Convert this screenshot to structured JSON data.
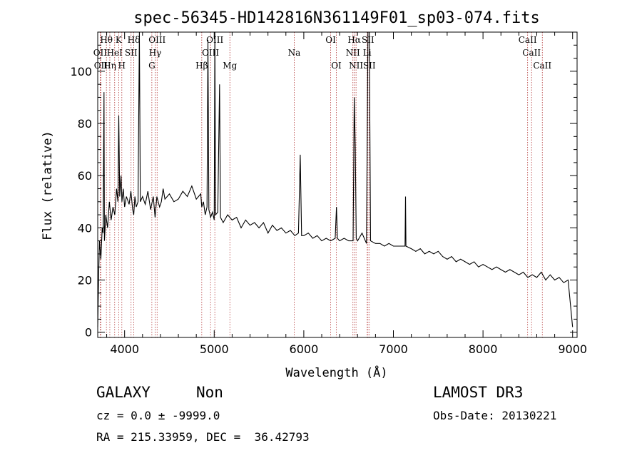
{
  "chart_data": {
    "type": "line",
    "title": "spec-56345-HD142816N361149F01_sp03-074.fits",
    "xlabel": "Wavelength (Å)",
    "ylabel": "Flux (relative)",
    "xlim": [
      3700,
      9050
    ],
    "ylim": [
      -2,
      115
    ],
    "xticks": [
      4000,
      5000,
      6000,
      7000,
      8000,
      9000
    ],
    "yticks": [
      0,
      20,
      40,
      60,
      80,
      100
    ],
    "grid": false,
    "series": [
      {
        "color": "#000000",
        "points": [
          [
            3700,
            2
          ],
          [
            3710,
            22
          ],
          [
            3720,
            35
          ],
          [
            3735,
            28
          ],
          [
            3750,
            40
          ],
          [
            3760,
            38
          ],
          [
            3770,
            92
          ],
          [
            3775,
            35
          ],
          [
            3790,
            45
          ],
          [
            3810,
            40
          ],
          [
            3830,
            50
          ],
          [
            3850,
            43
          ],
          [
            3870,
            48
          ],
          [
            3890,
            45
          ],
          [
            3910,
            55
          ],
          [
            3925,
            50
          ],
          [
            3935,
            83
          ],
          [
            3945,
            52
          ],
          [
            3960,
            60
          ],
          [
            3970,
            50
          ],
          [
            3985,
            55
          ],
          [
            4000,
            48
          ],
          [
            4020,
            52
          ],
          [
            4050,
            49
          ],
          [
            4070,
            54
          ],
          [
            4090,
            47
          ],
          [
            4102,
            45
          ],
          [
            4115,
            52
          ],
          [
            4130,
            48
          ],
          [
            4150,
            50
          ],
          [
            4165,
            115
          ],
          [
            4175,
            50
          ],
          [
            4200,
            52
          ],
          [
            4230,
            49
          ],
          [
            4260,
            54
          ],
          [
            4290,
            47
          ],
          [
            4320,
            52
          ],
          [
            4340,
            44
          ],
          [
            4360,
            52
          ],
          [
            4390,
            48
          ],
          [
            4410,
            50
          ],
          [
            4430,
            55
          ],
          [
            4450,
            51
          ],
          [
            4500,
            53
          ],
          [
            4550,
            50
          ],
          [
            4600,
            51
          ],
          [
            4650,
            54
          ],
          [
            4700,
            52
          ],
          [
            4750,
            56
          ],
          [
            4800,
            51
          ],
          [
            4850,
            53
          ],
          [
            4861,
            48
          ],
          [
            4880,
            50
          ],
          [
            4900,
            45
          ],
          [
            4920,
            48
          ],
          [
            4930,
            112
          ],
          [
            4940,
            47
          ],
          [
            4960,
            44
          ],
          [
            4980,
            46
          ],
          [
            5000,
            43
          ],
          [
            5007,
            115
          ],
          [
            5015,
            45
          ],
          [
            5040,
            46
          ],
          [
            5060,
            95
          ],
          [
            5070,
            44
          ],
          [
            5100,
            42
          ],
          [
            5150,
            45
          ],
          [
            5200,
            43
          ],
          [
            5250,
            44
          ],
          [
            5300,
            40
          ],
          [
            5350,
            43
          ],
          [
            5400,
            41
          ],
          [
            5450,
            42
          ],
          [
            5500,
            40
          ],
          [
            5550,
            42
          ],
          [
            5600,
            38
          ],
          [
            5650,
            41
          ],
          [
            5700,
            39
          ],
          [
            5750,
            40
          ],
          [
            5800,
            38
          ],
          [
            5850,
            39
          ],
          [
            5900,
            37
          ],
          [
            5940,
            38
          ],
          [
            5960,
            68
          ],
          [
            5975,
            37
          ],
          [
            6000,
            37
          ],
          [
            6050,
            38
          ],
          [
            6100,
            36
          ],
          [
            6150,
            37
          ],
          [
            6200,
            35
          ],
          [
            6250,
            36
          ],
          [
            6300,
            35
          ],
          [
            6350,
            36
          ],
          [
            6365,
            48
          ],
          [
            6375,
            36
          ],
          [
            6400,
            35
          ],
          [
            6450,
            36
          ],
          [
            6500,
            35
          ],
          [
            6550,
            35
          ],
          [
            6563,
            90
          ],
          [
            6575,
            70
          ],
          [
            6585,
            36
          ],
          [
            6600,
            35
          ],
          [
            6650,
            38
          ],
          [
            6700,
            34
          ],
          [
            6716,
            115
          ],
          [
            6731,
            115
          ],
          [
            6745,
            35
          ],
          [
            6800,
            34
          ],
          [
            6850,
            34
          ],
          [
            6900,
            33
          ],
          [
            6950,
            34
          ],
          [
            7000,
            33
          ],
          [
            7050,
            33
          ],
          [
            7100,
            33
          ],
          [
            7130,
            33
          ],
          [
            7135,
            52
          ],
          [
            7140,
            33
          ],
          [
            7200,
            32
          ],
          [
            7250,
            31
          ],
          [
            7300,
            32
          ],
          [
            7350,
            30
          ],
          [
            7400,
            31
          ],
          [
            7450,
            30
          ],
          [
            7500,
            31
          ],
          [
            7550,
            29
          ],
          [
            7600,
            28
          ],
          [
            7650,
            29
          ],
          [
            7700,
            27
          ],
          [
            7750,
            28
          ],
          [
            7800,
            27
          ],
          [
            7850,
            26
          ],
          [
            7900,
            27
          ],
          [
            7950,
            25
          ],
          [
            8000,
            26
          ],
          [
            8050,
            25
          ],
          [
            8100,
            24
          ],
          [
            8150,
            25
          ],
          [
            8200,
            24
          ],
          [
            8250,
            23
          ],
          [
            8300,
            24
          ],
          [
            8350,
            23
          ],
          [
            8400,
            22
          ],
          [
            8450,
            23
          ],
          [
            8500,
            21
          ],
          [
            8550,
            22
          ],
          [
            8600,
            21
          ],
          [
            8650,
            23
          ],
          [
            8700,
            20
          ],
          [
            8750,
            22
          ],
          [
            8800,
            20
          ],
          [
            8850,
            21
          ],
          [
            8900,
            19
          ],
          [
            8950,
            20
          ],
          [
            9000,
            2
          ]
        ]
      }
    ],
    "lines": [
      {
        "wl": 3727,
        "label": "OII",
        "row": 1
      },
      {
        "wl": 3735,
        "label": "OII",
        "row": 2
      },
      {
        "wl": 3797,
        "label": "Hθ",
        "row": 0
      },
      {
        "wl": 3835,
        "label": "Hη",
        "row": 2
      },
      {
        "wl": 3889,
        "label": "HeI",
        "row": 1
      },
      {
        "wl": 3934,
        "label": "K",
        "row": 0
      },
      {
        "wl": 3969,
        "label": "H",
        "row": 2
      },
      {
        "wl": 4072,
        "label": "SII",
        "row": 1
      },
      {
        "wl": 4102,
        "label": "Hδ",
        "row": 0
      },
      {
        "wl": 4304,
        "label": "G",
        "row": 2
      },
      {
        "wl": 4341,
        "label": "Hγ",
        "row": 1
      },
      {
        "wl": 4363,
        "label": "OIII",
        "row": 0
      },
      {
        "wl": 4861,
        "label": "Hβ",
        "row": 2
      },
      {
        "wl": 4959,
        "label": "OIII",
        "row": 1
      },
      {
        "wl": 5007,
        "label": "OIII",
        "row": 0
      },
      {
        "wl": 5175,
        "label": "Mg",
        "row": 2
      },
      {
        "wl": 5893,
        "label": "Na",
        "row": 1
      },
      {
        "wl": 6300,
        "label": "OI",
        "row": 0
      },
      {
        "wl": 6363,
        "label": "OI",
        "row": 2
      },
      {
        "wl": 6548,
        "label": "NII",
        "row": 1
      },
      {
        "wl": 6563,
        "label": "Hα",
        "row": 0
      },
      {
        "wl": 6583,
        "label": "NII",
        "row": 2
      },
      {
        "wl": 6716,
        "label": "SII",
        "row": 0
      },
      {
        "wl": 6707,
        "label": "Li",
        "row": 1
      },
      {
        "wl": 6731,
        "label": "SII",
        "row": 2
      },
      {
        "wl": 8498,
        "label": "CaII",
        "row": 0
      },
      {
        "wl": 8542,
        "label": "CaII",
        "row": 1
      },
      {
        "wl": 8662,
        "label": "CaII",
        "row": 2
      }
    ]
  },
  "info": {
    "class_label": "GALAXY",
    "subclass_label": "Non",
    "survey_label": "LAMOST DR3",
    "cz_line": "cz = 0.0 ± -9999.0",
    "obs_date_line": "Obs-Date: 20130221",
    "coords_line": "RA = 215.33959, DEC =  36.42793"
  }
}
